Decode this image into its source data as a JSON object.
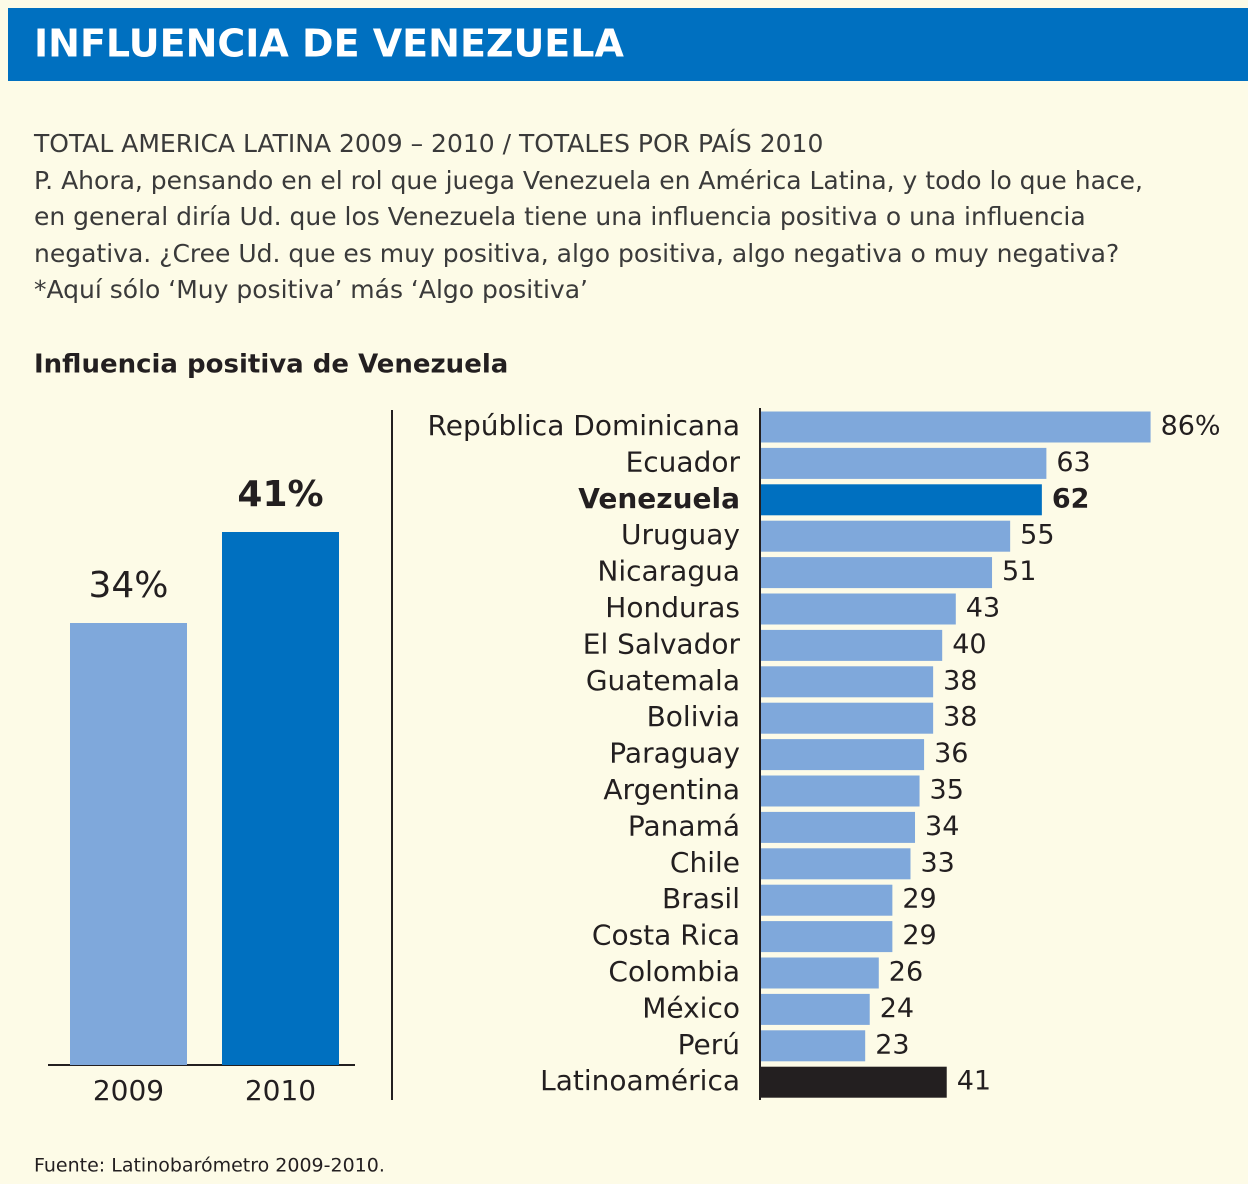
{
  "header": {
    "title": "INFLUENCIA DE VENEZUELA"
  },
  "intro": {
    "subtitle": "TOTAL AMERICA LATINA 2009 – 2010 / TOTALES POR PAÍS 2010",
    "lines": [
      "P. Ahora, pensando en el rol que juega Venezuela en América Latina, y todo lo que hace,",
      "en general diría Ud. que los Venezuela tiene una influencia positiva o una influencia",
      "negativa. ¿Cree Ud. que es muy positiva, algo positiva, algo negativa o muy negativa?",
      "*Aquí sólo ‘Muy positiva’ más ‘Algo positiva’"
    ]
  },
  "chart_title": "Influencia positiva de Venezuela",
  "chart_data": [
    {
      "type": "bar",
      "categories": [
        "2009",
        "2010"
      ],
      "values": [
        34,
        41
      ],
      "value_labels": [
        "34%",
        "41%"
      ],
      "colors": [
        "#7fa8db",
        "#0070c0"
      ],
      "ylim": [
        0,
        45
      ]
    },
    {
      "type": "hbar",
      "categories": [
        "República Dominicana",
        "Ecuador",
        "Venezuela",
        "Uruguay",
        "Nicaragua",
        "Honduras",
        "El Salvador",
        "Guatemala",
        "Bolivia",
        "Paraguay",
        "Argentina",
        "Panamá",
        "Chile",
        "Brasil",
        "Costa Rica",
        "Colombia",
        "México",
        "Perú",
        "Latinoamérica"
      ],
      "values": [
        86,
        63,
        62,
        55,
        51,
        43,
        40,
        38,
        38,
        36,
        35,
        34,
        33,
        29,
        29,
        26,
        24,
        23,
        41
      ],
      "value_labels": [
        "86%",
        "63",
        "62",
        "55",
        "51",
        "43",
        "40",
        "38",
        "38",
        "36",
        "35",
        "34",
        "33",
        "29",
        "29",
        "26",
        "24",
        "23",
        "41"
      ],
      "colors": [
        "#7fa8db",
        "#7fa8db",
        "#0070c0",
        "#7fa8db",
        "#7fa8db",
        "#7fa8db",
        "#7fa8db",
        "#7fa8db",
        "#7fa8db",
        "#7fa8db",
        "#7fa8db",
        "#7fa8db",
        "#7fa8db",
        "#7fa8db",
        "#7fa8db",
        "#7fa8db",
        "#7fa8db",
        "#7fa8db",
        "#231f20"
      ],
      "highlight_color": "#0070c0",
      "xlim": [
        0,
        100
      ]
    }
  ],
  "source": "Fuente: Latinobarómetro 2009-2010."
}
